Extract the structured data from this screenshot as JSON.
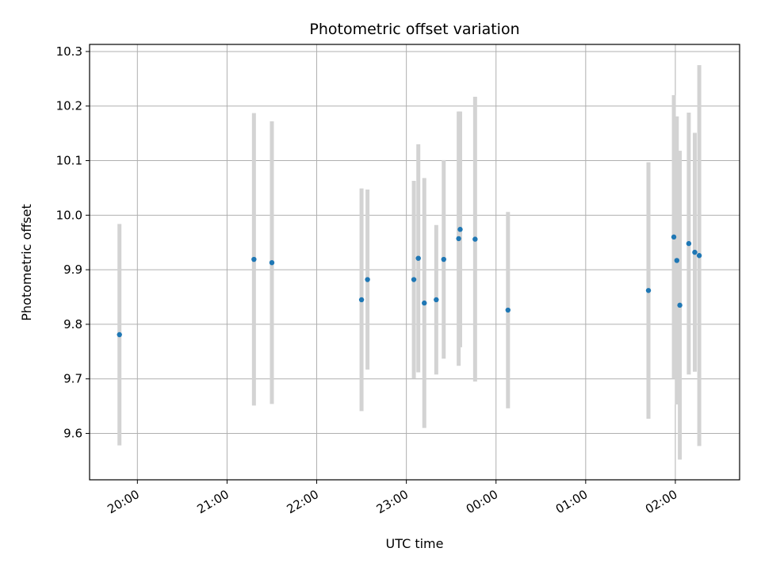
{
  "chart_data": {
    "type": "scatter",
    "title": "Photometric offset variation",
    "xlabel": "UTC time",
    "ylabel": "Photometric offset",
    "grid": true,
    "x_is_time": true,
    "xlim": [
      "19:28",
      "02:43"
    ],
    "ylim": [
      9.515,
      10.313
    ],
    "x_ticks": [
      "20:00",
      "21:00",
      "22:00",
      "23:00",
      "00:00",
      "01:00",
      "02:00"
    ],
    "y_ticks": [
      9.6,
      9.7,
      9.8,
      9.9,
      10.0,
      10.1,
      10.2,
      10.3
    ],
    "y_tick_labels": [
      "9.6",
      "9.7",
      "9.8",
      "9.9",
      "10.0",
      "10.1",
      "10.2",
      "10.3"
    ],
    "colors": {
      "point": "#1f77b4",
      "errorbar": "#d3d3d3",
      "grid": "#b0b0b0"
    },
    "points": [
      {
        "x": "19:48",
        "y": 9.781,
        "err": 0.203
      },
      {
        "x": "21:18",
        "y": 9.919,
        "err": 0.268
      },
      {
        "x": "21:30",
        "y": 9.913,
        "err": 0.259
      },
      {
        "x": "22:30",
        "y": 9.845,
        "err": 0.204
      },
      {
        "x": "22:34",
        "y": 9.882,
        "err": 0.165
      },
      {
        "x": "23:05",
        "y": 9.882,
        "err": 0.181
      },
      {
        "x": "23:08",
        "y": 9.921,
        "err": 0.209
      },
      {
        "x": "23:12",
        "y": 9.839,
        "err": 0.229
      },
      {
        "x": "23:20",
        "y": 9.845,
        "err": 0.137
      },
      {
        "x": "23:25",
        "y": 9.919,
        "err": 0.182
      },
      {
        "x": "23:35",
        "y": 9.957,
        "err": 0.233
      },
      {
        "x": "23:36",
        "y": 9.974,
        "err": 0.216
      },
      {
        "x": "23:46",
        "y": 9.956,
        "err": 0.261
      },
      {
        "x": "00:08",
        "y": 9.826,
        "err": 0.18
      },
      {
        "x": "01:42",
        "y": 9.862,
        "err": 0.235
      },
      {
        "x": "01:59",
        "y": 9.96,
        "err": 0.26
      },
      {
        "x": "02:01",
        "y": 9.917,
        "err": 0.264
      },
      {
        "x": "02:03",
        "y": 9.835,
        "err": 0.283
      },
      {
        "x": "02:09",
        "y": 9.948,
        "err": 0.24
      },
      {
        "x": "02:13",
        "y": 9.932,
        "err": 0.219
      },
      {
        "x": "02:16",
        "y": 9.926,
        "err": 0.349
      }
    ]
  }
}
